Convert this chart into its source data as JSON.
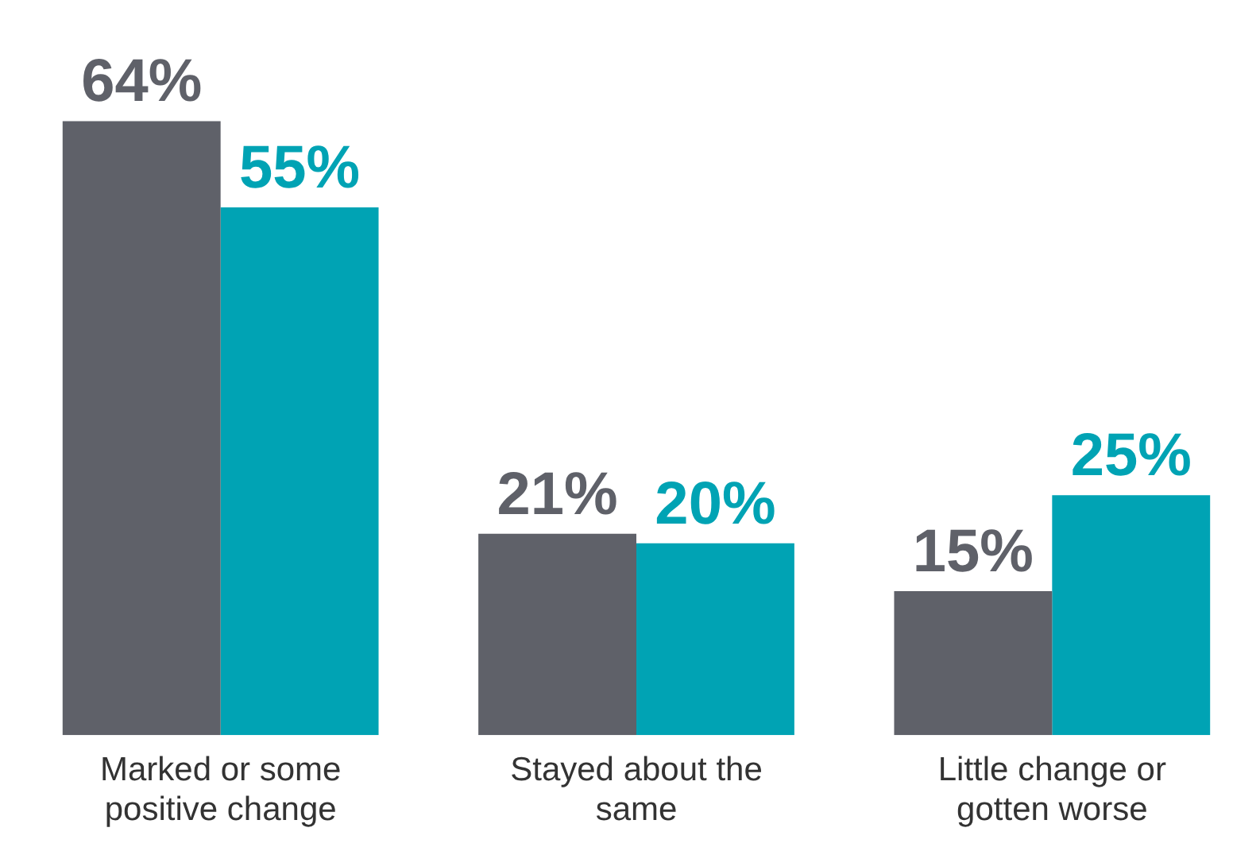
{
  "chart_data": {
    "type": "bar",
    "categories": [
      "Marked or some positive change",
      "Stayed about the same",
      "Little change or gotten worse"
    ],
    "series": [
      {
        "color": "#5f6169",
        "values": [
          64,
          21,
          15
        ],
        "value_labels": [
          "64%",
          "21%",
          "15%"
        ]
      },
      {
        "color": "#00a3b4",
        "values": [
          55,
          20,
          25
        ],
        "value_labels": [
          "55%",
          "20%",
          "25%"
        ]
      }
    ],
    "grid": false,
    "legend": false
  }
}
